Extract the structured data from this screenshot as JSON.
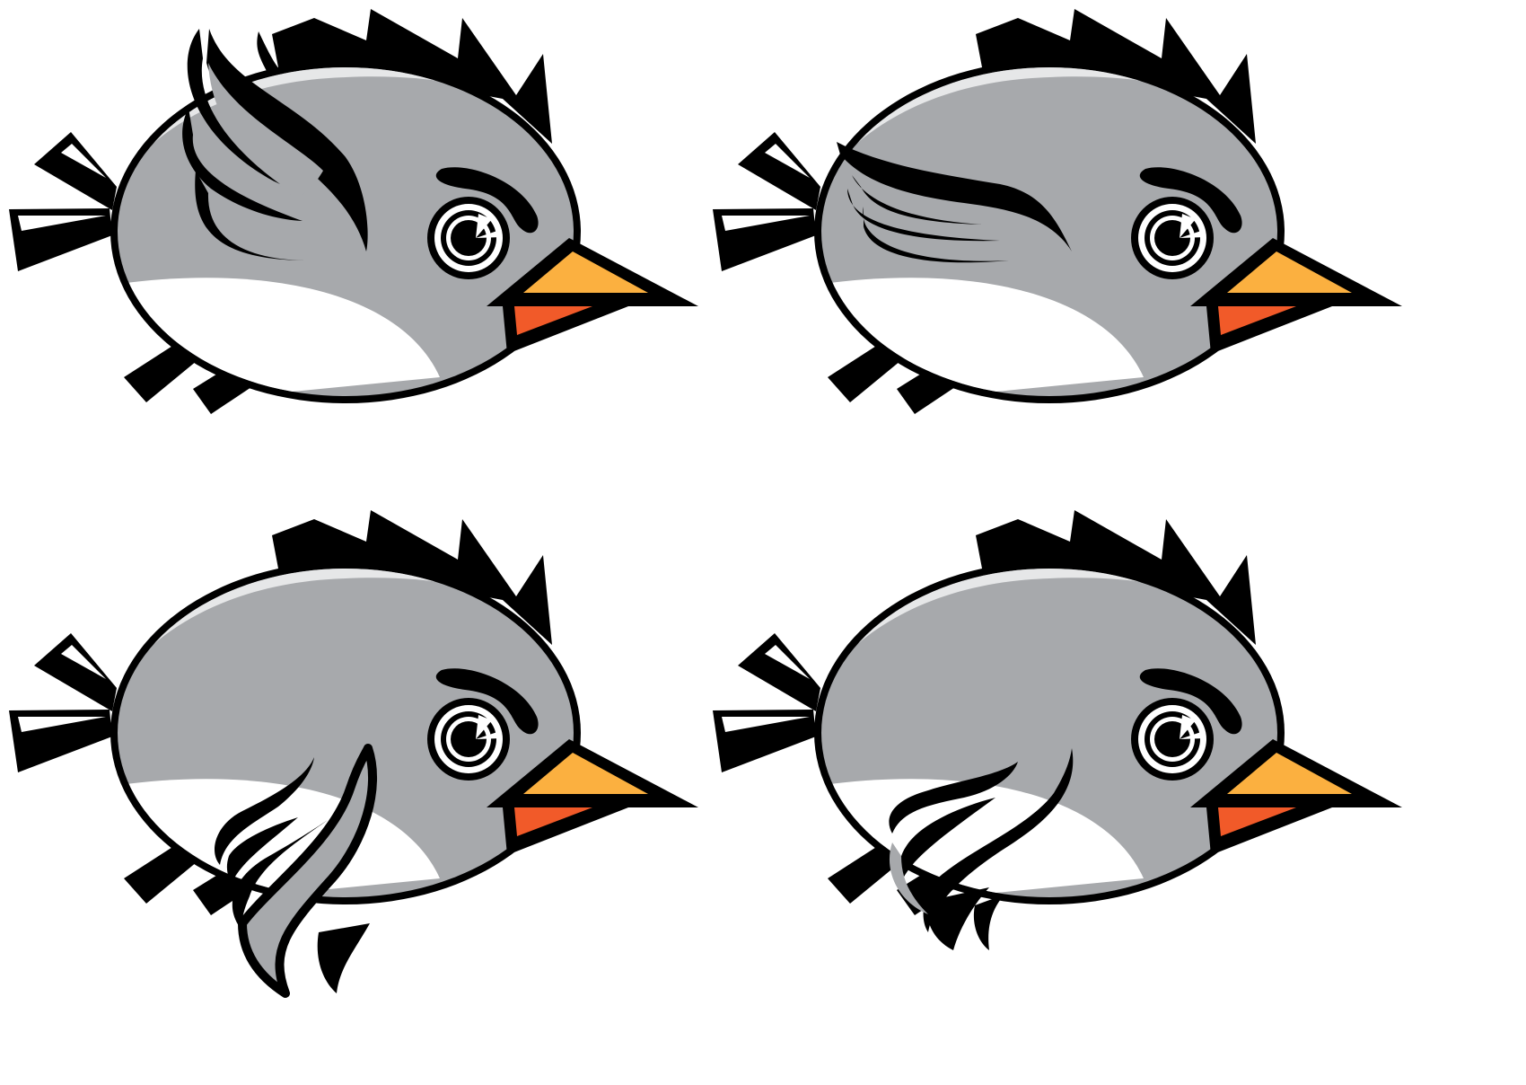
{
  "sprite_sheet": {
    "frames": [
      {
        "pose": "wing-up"
      },
      {
        "pose": "wing-level"
      },
      {
        "pose": "wing-down"
      },
      {
        "pose": "wing-down-tucked"
      }
    ]
  },
  "colors": {
    "outline": "#000000",
    "body": "#a7a9ac",
    "highlight": "#e6e7e8",
    "belly": "#ffffff",
    "beak_upper": "#fbb040",
    "beak_lower": "#f15a29"
  }
}
